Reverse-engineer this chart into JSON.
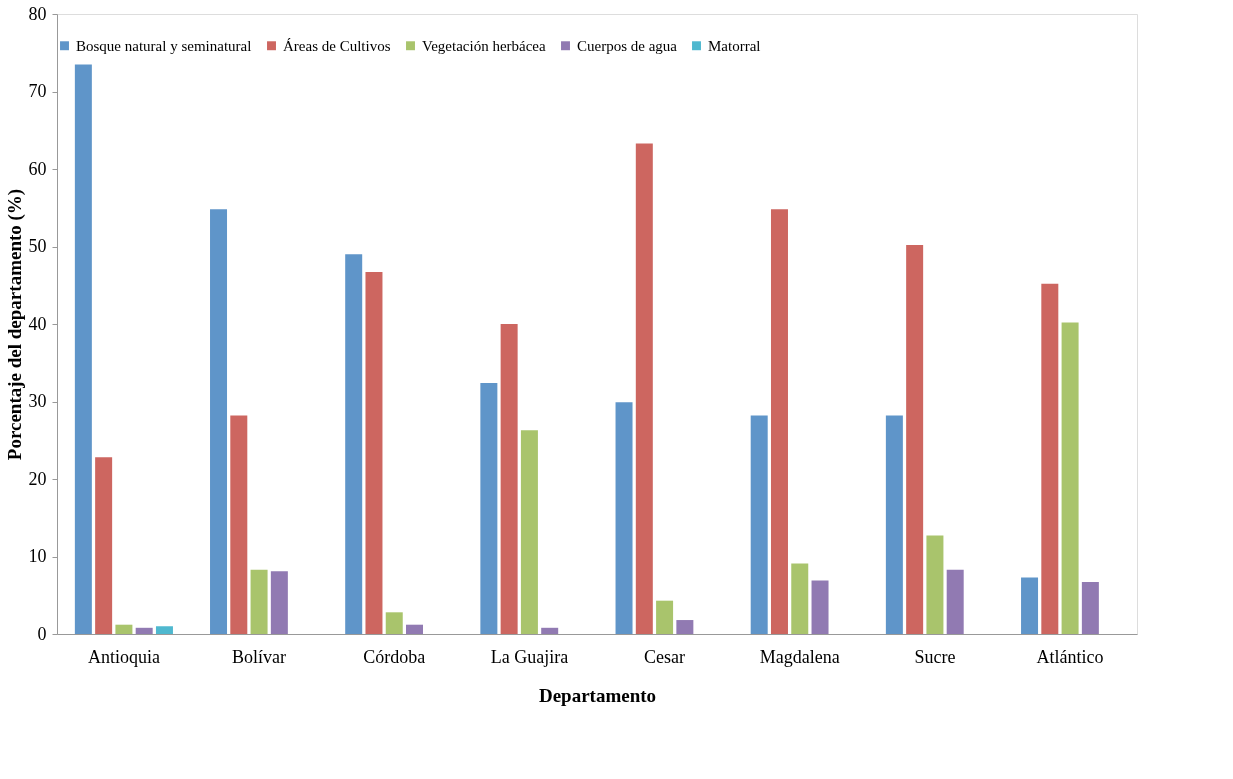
{
  "chart_data": {
    "type": "bar",
    "xlabel": "Departamento",
    "ylabel": "Porcentaje del departamento (%)",
    "categories": [
      "Antioquia",
      "Bolívar",
      "Córdoba",
      "La Guajira",
      "Cesar",
      "Magdalena",
      "Sucre",
      "Atlántico"
    ],
    "series": [
      {
        "name": "Bosque natural y seminatural",
        "color": "#5f95c9",
        "values": [
          73.5,
          54.8,
          49.0,
          32.4,
          29.9,
          28.2,
          28.2,
          7.3
        ]
      },
      {
        "name": "Áreas de Cultivos",
        "color": "#cd6660",
        "values": [
          22.8,
          28.2,
          46.7,
          40.0,
          63.3,
          54.8,
          50.2,
          45.2
        ]
      },
      {
        "name": "Vegetación herbácea",
        "color": "#a9c46c",
        "values": [
          1.2,
          8.3,
          2.8,
          26.3,
          4.3,
          9.1,
          12.7,
          40.2
        ]
      },
      {
        "name": "Cuerpos de agua",
        "color": "#917ab2",
        "values": [
          0.8,
          8.1,
          1.2,
          0.8,
          1.8,
          6.9,
          8.3,
          6.7
        ]
      },
      {
        "name": "Matorral",
        "color": "#4fb8cf",
        "values": [
          1.0,
          null,
          null,
          null,
          null,
          null,
          null,
          null
        ]
      }
    ],
    "ylim": [
      0,
      80
    ],
    "yticks": [
      0,
      10,
      20,
      30,
      40,
      50,
      60,
      70,
      80
    ],
    "grid": false,
    "legend": "top"
  }
}
